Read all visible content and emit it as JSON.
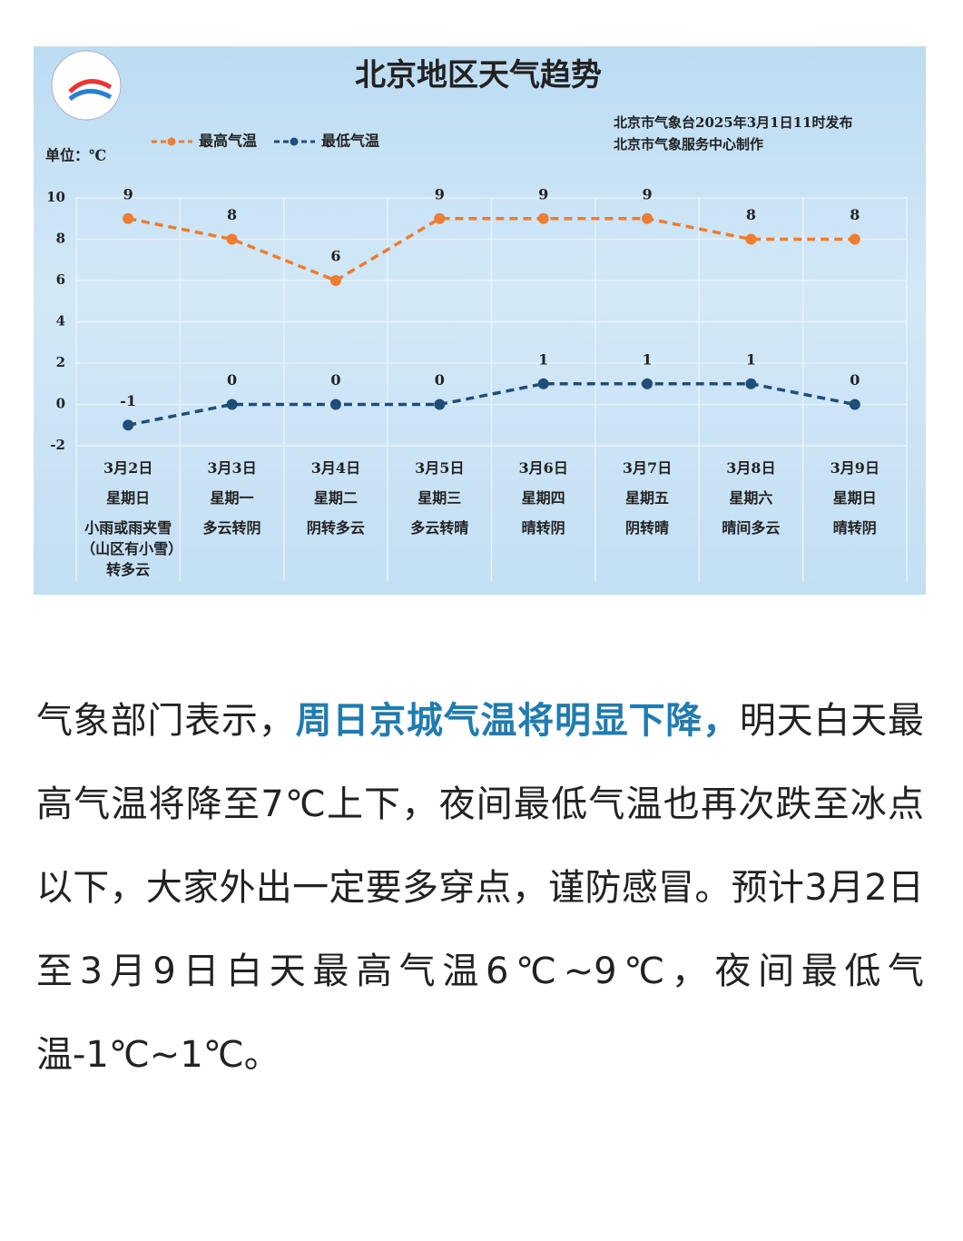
{
  "chart_data": {
    "type": "line",
    "title": "北京地区天气趋势",
    "source": [
      "北京市气象台2025年3月1日11时发布",
      "北京市气象服务中心制作"
    ],
    "unit_label": "单位：℃",
    "categories": [
      "3月2日",
      "3月3日",
      "3月4日",
      "3月5日",
      "3月6日",
      "3月7日",
      "3月8日",
      "3月9日"
    ],
    "weekdays": [
      "星期日",
      "星期一",
      "星期二",
      "星期三",
      "星期四",
      "星期五",
      "星期六",
      "星期日"
    ],
    "weather": [
      "小雨或雨夹雪（山区有小雪）转多云",
      "多云转阴",
      "阴转多云",
      "多云转晴",
      "晴转阴",
      "阴转晴",
      "晴间多云",
      "晴转阴"
    ],
    "series": [
      {
        "name": "最高气温",
        "color": "#ed7d31",
        "values": [
          9,
          8,
          6,
          9,
          9,
          9,
          8,
          8
        ]
      },
      {
        "name": "最低气温",
        "color": "#1f4e79",
        "values": [
          -1,
          0,
          0,
          0,
          1,
          1,
          1,
          0
        ]
      }
    ],
    "ylim": [
      -2,
      10
    ],
    "yticks": [
      -2,
      0,
      2,
      4,
      6,
      8,
      10
    ],
    "grid": true,
    "legend": "top"
  },
  "article": {
    "paragraph": [
      "气象部门表示，",
      "周日京城气温将明显下降，",
      "明天白天最高气温将降至7℃上下，夜间最低气温也再次跌至冰点以下，大家外出一定要多穿点，谨防感冒。预计3月2日至3月9日白天最高气温6℃~9℃，夜间最低气温-1℃~1℃。"
    ]
  }
}
